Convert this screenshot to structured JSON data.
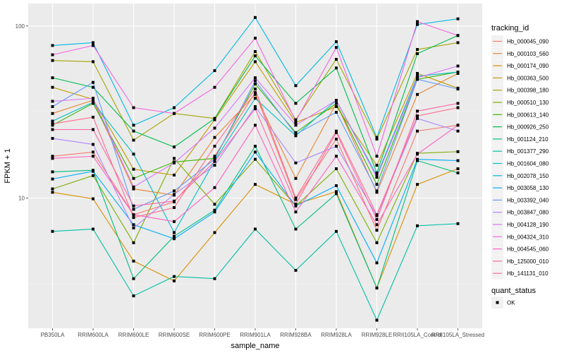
{
  "chart_data": {
    "type": "line",
    "title": "",
    "xlabel": "sample_name",
    "ylabel": "FPKM + 1",
    "y_scale": "log10",
    "ylim": [
      1.75,
      135
    ],
    "y_ticks": [
      {
        "value": 10,
        "label": "10"
      },
      {
        "value": 100,
        "label": "100"
      }
    ],
    "grid": true,
    "legend_placement": "right",
    "categories": [
      "PB350LA",
      "RRIM600LA",
      "RRIM600LE",
      "RRIM600SE",
      "RRIM600PE",
      "RRIM901LA",
      "RRIM928BA",
      "RRIM928LA",
      "RRIM928LE",
      "RRII105LA_Control",
      "RRII105LA_Stressed"
    ],
    "legend": {
      "color_title": "tracking_id",
      "shape_title": "quant_status",
      "shape_entries": [
        {
          "label": "OK",
          "shape": "square"
        }
      ]
    },
    "series": [
      {
        "name": "Hb_000045_090",
        "color": "#F8766D",
        "values": [
          17.5,
          18.5,
          8.0,
          9.5,
          17.5,
          41,
          9.8,
          22,
          6.5,
          24.5,
          26.5
        ]
      },
      {
        "name": "Hb_000103_560",
        "color": "#EA8331",
        "values": [
          31,
          37,
          11.3,
          10.4,
          22.5,
          40,
          13.0,
          35.5,
          10.8,
          40,
          53
        ]
      },
      {
        "name": "Hb_000174_090",
        "color": "#D89000",
        "values": [
          10.8,
          9.9,
          4.3,
          3.3,
          6.3,
          12.0,
          9.2,
          10.9,
          3.0,
          12.0,
          14.8
        ]
      },
      {
        "name": "Hb_000363_500",
        "color": "#C09B00",
        "values": [
          44,
          37.5,
          14.7,
          13.6,
          28.5,
          62,
          27.5,
          34,
          15.5,
          53,
          43.5
        ]
      },
      {
        "name": "Hb_000398_180",
        "color": "#A3A500",
        "values": [
          63,
          62,
          21.7,
          31,
          29,
          71,
          28.5,
          64,
          22,
          73,
          80
        ]
      },
      {
        "name": "Hb_000510_130",
        "color": "#7CAE00",
        "values": [
          11.3,
          13.5,
          5.5,
          17.0,
          9.2,
          16.8,
          9.0,
          14.8,
          5.5,
          18.2,
          18.6
        ]
      },
      {
        "name": "Hb_000613_140",
        "color": "#39B600",
        "values": [
          26.5,
          35.5,
          13.0,
          16.2,
          17.0,
          46,
          24.0,
          35.5,
          12.0,
          49,
          54
        ]
      },
      {
        "name": "Hb_000926_250",
        "color": "#00BB4E",
        "values": [
          50,
          44,
          24.5,
          19.8,
          29,
          67,
          35.5,
          57,
          14.0,
          69,
          88
        ]
      },
      {
        "name": "Hb_001124_210",
        "color": "#00BF7D",
        "values": [
          14.2,
          14.5,
          3.4,
          6.0,
          8.5,
          20,
          6.6,
          10.6,
          3.0,
          16.5,
          14.0
        ]
      },
      {
        "name": "Hb_001377_290",
        "color": "#00C1A3",
        "values": [
          6.4,
          6.6,
          2.7,
          3.5,
          3.4,
          6.6,
          3.8,
          6.4,
          1.95,
          6.9,
          7.1
        ]
      },
      {
        "name": "Hb_001604_080",
        "color": "#00BFC4",
        "values": [
          28,
          36,
          18.0,
          6.3,
          16.5,
          38,
          23.0,
          37,
          13.5,
          51,
          54
        ]
      },
      {
        "name": "Hb_002078_150",
        "color": "#00B9E3",
        "values": [
          77,
          80,
          26.5,
          33.5,
          55,
          112,
          45,
          81,
          22.5,
          102,
          110
        ]
      },
      {
        "name": "Hb_003058_130",
        "color": "#00ADFA",
        "values": [
          12.9,
          14.3,
          7.0,
          5.8,
          8.3,
          18.5,
          9.0,
          11.8,
          4.2,
          16.8,
          16.5
        ]
      },
      {
        "name": "Hb_003392_040",
        "color": "#619CFF",
        "values": [
          34,
          47,
          8.6,
          11.0,
          16.8,
          48,
          23.5,
          31.5,
          11.0,
          49,
          43
        ]
      },
      {
        "name": "Hb_003847_080",
        "color": "#AE87FF",
        "values": [
          22.2,
          20.5,
          6.7,
          10.5,
          15.5,
          34,
          16.0,
          20,
          7.9,
          29,
          24.5
        ]
      },
      {
        "name": "Hb_004128_190",
        "color": "#DB72FB",
        "values": [
          36.5,
          38,
          11.6,
          16.0,
          25.5,
          50,
          26.5,
          37,
          13.2,
          50,
          58.5
        ]
      },
      {
        "name": "Hb_004324_310",
        "color": "#F564E3",
        "values": [
          68,
          77,
          33.5,
          31,
          44,
          85,
          28,
          75,
          17.5,
          106,
          88
        ]
      },
      {
        "name": "Hb_004545_060",
        "color": "#FF61C3",
        "values": [
          17.0,
          17.5,
          8.0,
          7.3,
          11.5,
          26.5,
          8.3,
          17.5,
          7.0,
          18.0,
          26.5
        ]
      },
      {
        "name": "Hb_125000_010",
        "color": "#FF67A4",
        "values": [
          25,
          25,
          9.0,
          9.6,
          16.3,
          33,
          9.2,
          24,
          7.5,
          32,
          35.5
        ]
      },
      {
        "name": "Hb_141131_010",
        "color": "#FF6C90",
        "values": [
          27,
          29.5,
          7.7,
          8.8,
          20,
          43,
          10.0,
          24.5,
          8.0,
          30,
          33.5
        ]
      }
    ]
  }
}
